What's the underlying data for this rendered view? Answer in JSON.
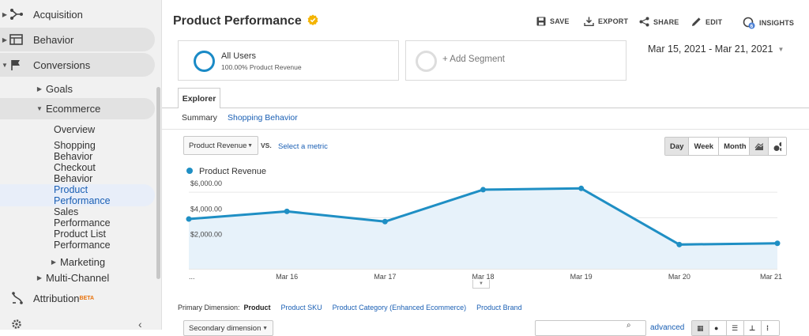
{
  "sidebar": {
    "items": [
      {
        "label": "Acquisition",
        "icon": "acquisition-icon"
      },
      {
        "label": "Behavior",
        "icon": "behavior-icon"
      },
      {
        "label": "Conversions",
        "icon": "flag-icon"
      }
    ],
    "goals": "Goals",
    "ecommerce": "Ecommerce",
    "ecom_items": [
      "Overview",
      "Shopping",
      "Behavior",
      "Checkout",
      "Behavior",
      "Product",
      "Performance",
      "Sales",
      "Performance",
      "Product List",
      "Performance"
    ],
    "marketing": "Marketing",
    "multichannel": "Multi-Channel",
    "attribution": "Attribution",
    "beta": "BETA"
  },
  "header": {
    "title": "Product Performance",
    "save": "SAVE",
    "export": "EXPORT",
    "share": "SHARE",
    "edit": "EDIT",
    "insights": "INSIGHTS",
    "insights_badge": "6"
  },
  "segments": {
    "all_users_title": "All Users",
    "all_users_sub": "100.00% Product Revenue",
    "add_segment": "+ Add Segment"
  },
  "date_range": "Mar 15, 2021 - Mar 21, 2021",
  "explorer": {
    "tab": "Explorer",
    "summary": "Summary",
    "shopping_behavior": "Shopping Behavior",
    "metric_select": "Product Revenue",
    "vs": "VS.",
    "select_metric": "Select a metric",
    "day": "Day",
    "week": "Week",
    "month": "Month"
  },
  "chart_data": {
    "type": "area",
    "series": [
      {
        "name": "Product Revenue",
        "values": [
          3900,
          4500,
          3700,
          6200,
          6300,
          1900,
          2000
        ]
      }
    ],
    "x": [
      "Mar 15",
      "Mar 16",
      "Mar 17",
      "Mar 18",
      "Mar 19",
      "Mar 20",
      "Mar 21"
    ],
    "x_tick_labels": [
      "...",
      "Mar 16",
      "Mar 17",
      "Mar 18",
      "Mar 19",
      "Mar 20",
      "Mar 21"
    ],
    "y_ticks": [
      "$6,000.00",
      "$4,000.00",
      "$2,000.00"
    ],
    "y_tick_values": [
      6000,
      4000,
      2000
    ],
    "ylim": [
      0,
      7000
    ],
    "color": "#1f8fc4",
    "fill": "#e7f2fa"
  },
  "dimensions": {
    "label": "Primary Dimension:",
    "items": [
      "Product",
      "Product SKU",
      "Product Category (Enhanced Ecommerce)",
      "Product Brand"
    ]
  },
  "secondary": "Secondary dimension",
  "advanced": "advanced"
}
